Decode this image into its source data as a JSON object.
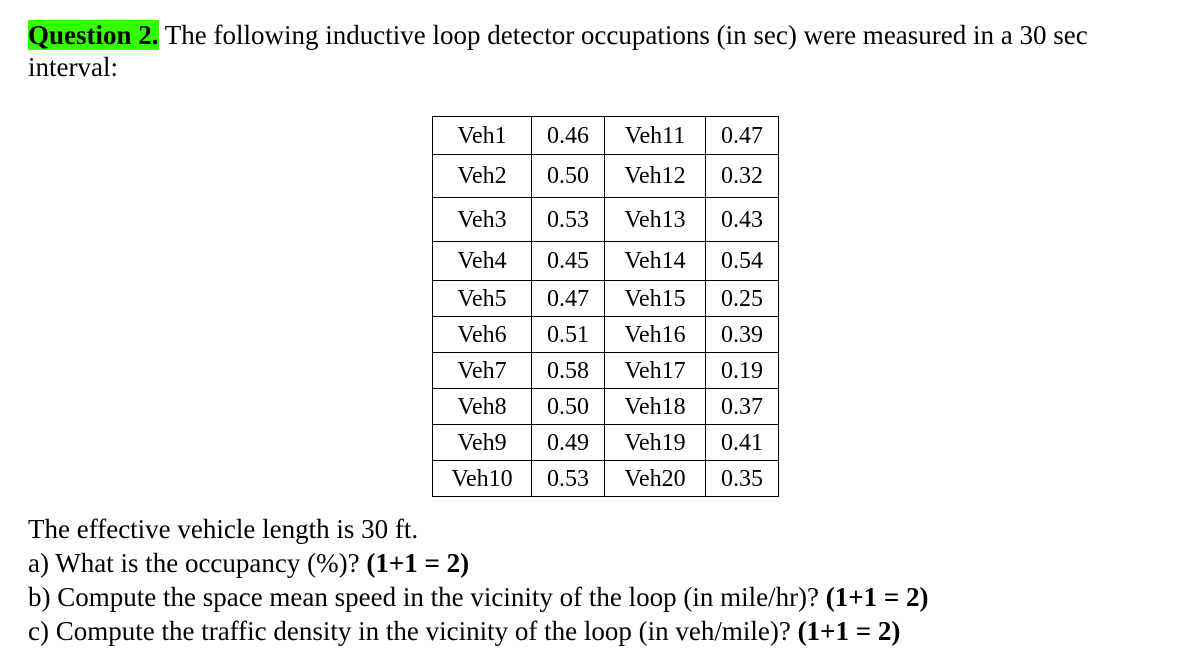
{
  "question": {
    "label": "Question 2",
    "period": ".",
    "text": " The following inductive loop detector occupations (in sec) were measured in a 30 sec",
    "text_line2": "interval:"
  },
  "table": {
    "rows": [
      [
        "Veh1",
        "0.46",
        "Veh11",
        "0.47"
      ],
      [
        "Veh2",
        "0.50",
        "Veh12",
        "0.32"
      ],
      [
        "Veh3",
        "0.53",
        "Veh13",
        "0.43"
      ],
      [
        "Veh4",
        "0.45",
        "Veh14",
        "0.54"
      ],
      [
        "Veh5",
        "0.47",
        "Veh15",
        "0.25"
      ],
      [
        "Veh6",
        "0.51",
        "Veh16",
        "0.39"
      ],
      [
        "Veh7",
        "0.58",
        "Veh17",
        "0.19"
      ],
      [
        "Veh8",
        "0.50",
        "Veh18",
        "0.37"
      ],
      [
        "Veh9",
        "0.49",
        "Veh19",
        "0.41"
      ],
      [
        "Veh10",
        "0.53",
        "Veh20",
        "0.35"
      ]
    ]
  },
  "footer": {
    "length_note": "The effective vehicle length is 30 ft.",
    "a_text": "a) What is the occupancy (%)? ",
    "a_points": "(1+1 = 2)",
    "b_text": "b) Compute the space mean speed in the vicinity of the loop (in mile/hr)? ",
    "b_points": "(1+1 = 2)",
    "c_text": "c) Compute the traffic density in the vicinity of the loop (in veh/mile)? ",
    "c_points": "(1+1 = 2)"
  },
  "colors": {
    "highlight": "#33ff00",
    "text": "#000000"
  }
}
